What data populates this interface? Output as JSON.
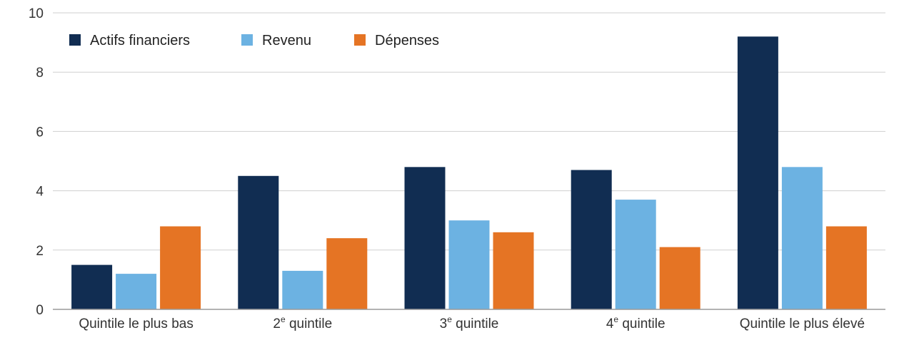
{
  "chart_data": {
    "type": "bar",
    "categories": [
      {
        "base": "Quintile le plus bas",
        "sup": ""
      },
      {
        "base": "2",
        "sup": "e",
        "rest": " quintile"
      },
      {
        "base": "3",
        "sup": "e",
        "rest": " quintile"
      },
      {
        "base": "4",
        "sup": "e",
        "rest": " quintile"
      },
      {
        "base": "Quintile le plus élevé",
        "sup": ""
      }
    ],
    "series": [
      {
        "name": "Actifs financiers",
        "color": "#112d52",
        "values": [
          1.5,
          4.5,
          4.8,
          4.7,
          9.2
        ]
      },
      {
        "name": "Revenu",
        "color": "#6cb2e2",
        "values": [
          1.2,
          1.3,
          3.0,
          3.7,
          4.8
        ]
      },
      {
        "name": "Dépenses",
        "color": "#e57424",
        "values": [
          2.8,
          2.4,
          2.6,
          2.1,
          2.8
        ]
      }
    ],
    "ylim": [
      0,
      10
    ],
    "yticks": [
      0,
      2,
      4,
      6,
      8,
      10
    ],
    "grid": true,
    "legend": "top-left"
  }
}
